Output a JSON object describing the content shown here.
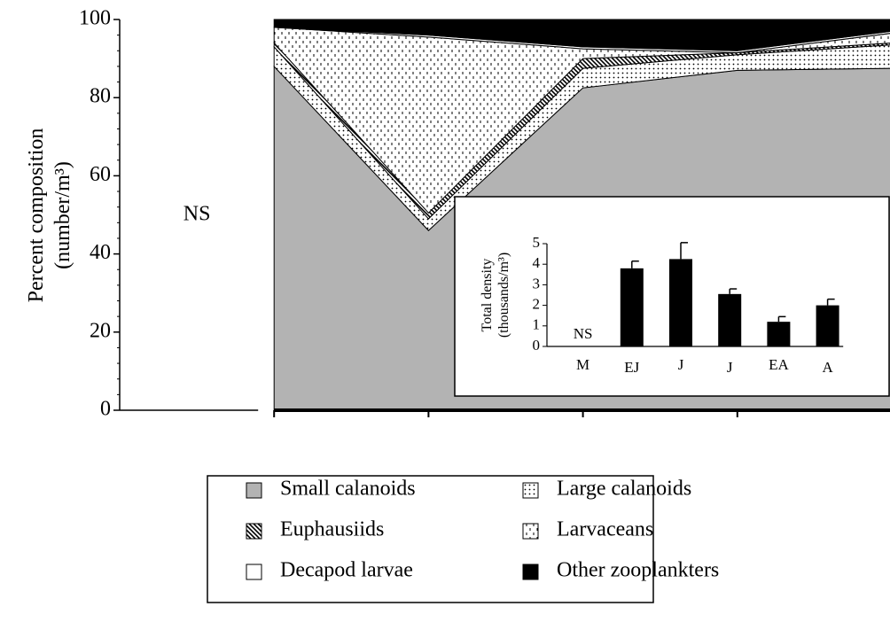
{
  "chart_data": [
    {
      "type": "stacked-area",
      "ylabel": [
        "Percent composition",
        "(number/m³)"
      ],
      "annotation": "NS",
      "categories": [
        null,
        null,
        null,
        null,
        null,
        null
      ],
      "ylim": [
        0,
        100
      ],
      "yticks": [
        0,
        20,
        40,
        60,
        80,
        100
      ],
      "series": [
        {
          "name": "Small calanoids",
          "color": "#b3b3b3",
          "values": [
            null,
            88,
            46,
            82.5,
            87,
            87.5
          ]
        },
        {
          "name": "Large calanoids",
          "color": "#000000",
          "pattern": "dots",
          "values": [
            null,
            5,
            3,
            5,
            4,
            6
          ]
        },
        {
          "name": "Euphausiids",
          "color": "#000000",
          "pattern": "hatch",
          "values": [
            null,
            1,
            1.5,
            2.5,
            0.5,
            0.5
          ]
        },
        {
          "name": "Larvaceans",
          "color": "#000000",
          "pattern": "dashes",
          "values": [
            null,
            4,
            45,
            2.5,
            0,
            2.5
          ]
        },
        {
          "name": "Decapod larvae",
          "color": "#ffffff",
          "values": [
            null,
            0,
            0.5,
            0.5,
            0.5,
            0.5
          ]
        },
        {
          "name": "Other zooplankters",
          "color": "#000000",
          "values": [
            null,
            2,
            4,
            7,
            8,
            3
          ]
        }
      ]
    },
    {
      "type": "bar",
      "ylabel": [
        "Total density",
        "(thousands/m³)"
      ],
      "annotation": "NS",
      "categories": [
        "M",
        "EJ",
        "J",
        "J",
        "EA",
        "A"
      ],
      "values": [
        null,
        3.8,
        4.25,
        2.55,
        1.2,
        2.0
      ],
      "errors": [
        null,
        0.35,
        0.8,
        0.25,
        0.25,
        0.3
      ],
      "color": "#000000",
      "ylim": [
        0,
        5
      ],
      "yticks": [
        0,
        1,
        2,
        3,
        4,
        5
      ]
    }
  ]
}
